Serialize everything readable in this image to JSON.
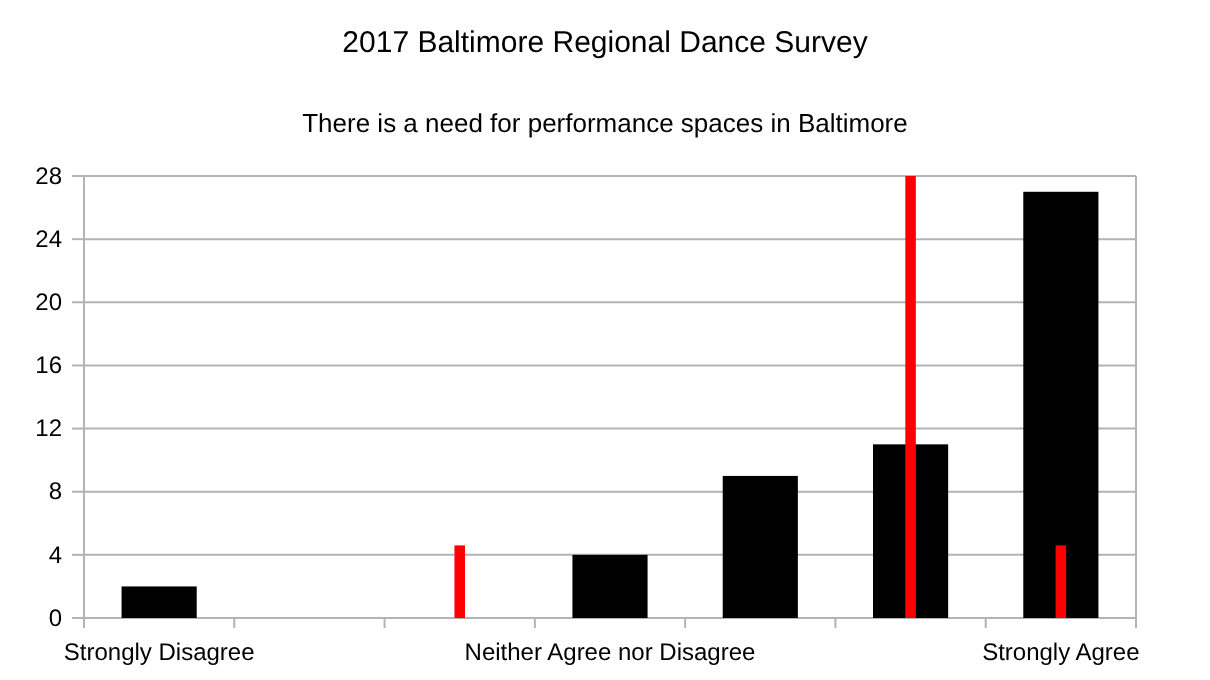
{
  "chart_data": {
    "type": "bar",
    "title": "2017 Baltimore Regional Dance Survey",
    "subtitle": "There is a need for performance spaces in Baltimore",
    "categories": [
      "Strongly Disagree",
      null,
      null,
      "Neither Agree nor Disagree",
      null,
      null,
      "Strongly Agree"
    ],
    "series": [
      {
        "color": "#000000",
        "values": [
          2,
          0,
          0,
          4,
          9,
          11,
          27
        ]
      },
      {
        "color": "#ff0000",
        "values": [
          null,
          null,
          4.6,
          null,
          null,
          28,
          4.6
        ]
      }
    ],
    "ylim": [
      0,
      28
    ],
    "yticks": [
      0,
      4,
      8,
      12,
      16,
      20,
      24,
      28
    ],
    "grid": "y"
  }
}
